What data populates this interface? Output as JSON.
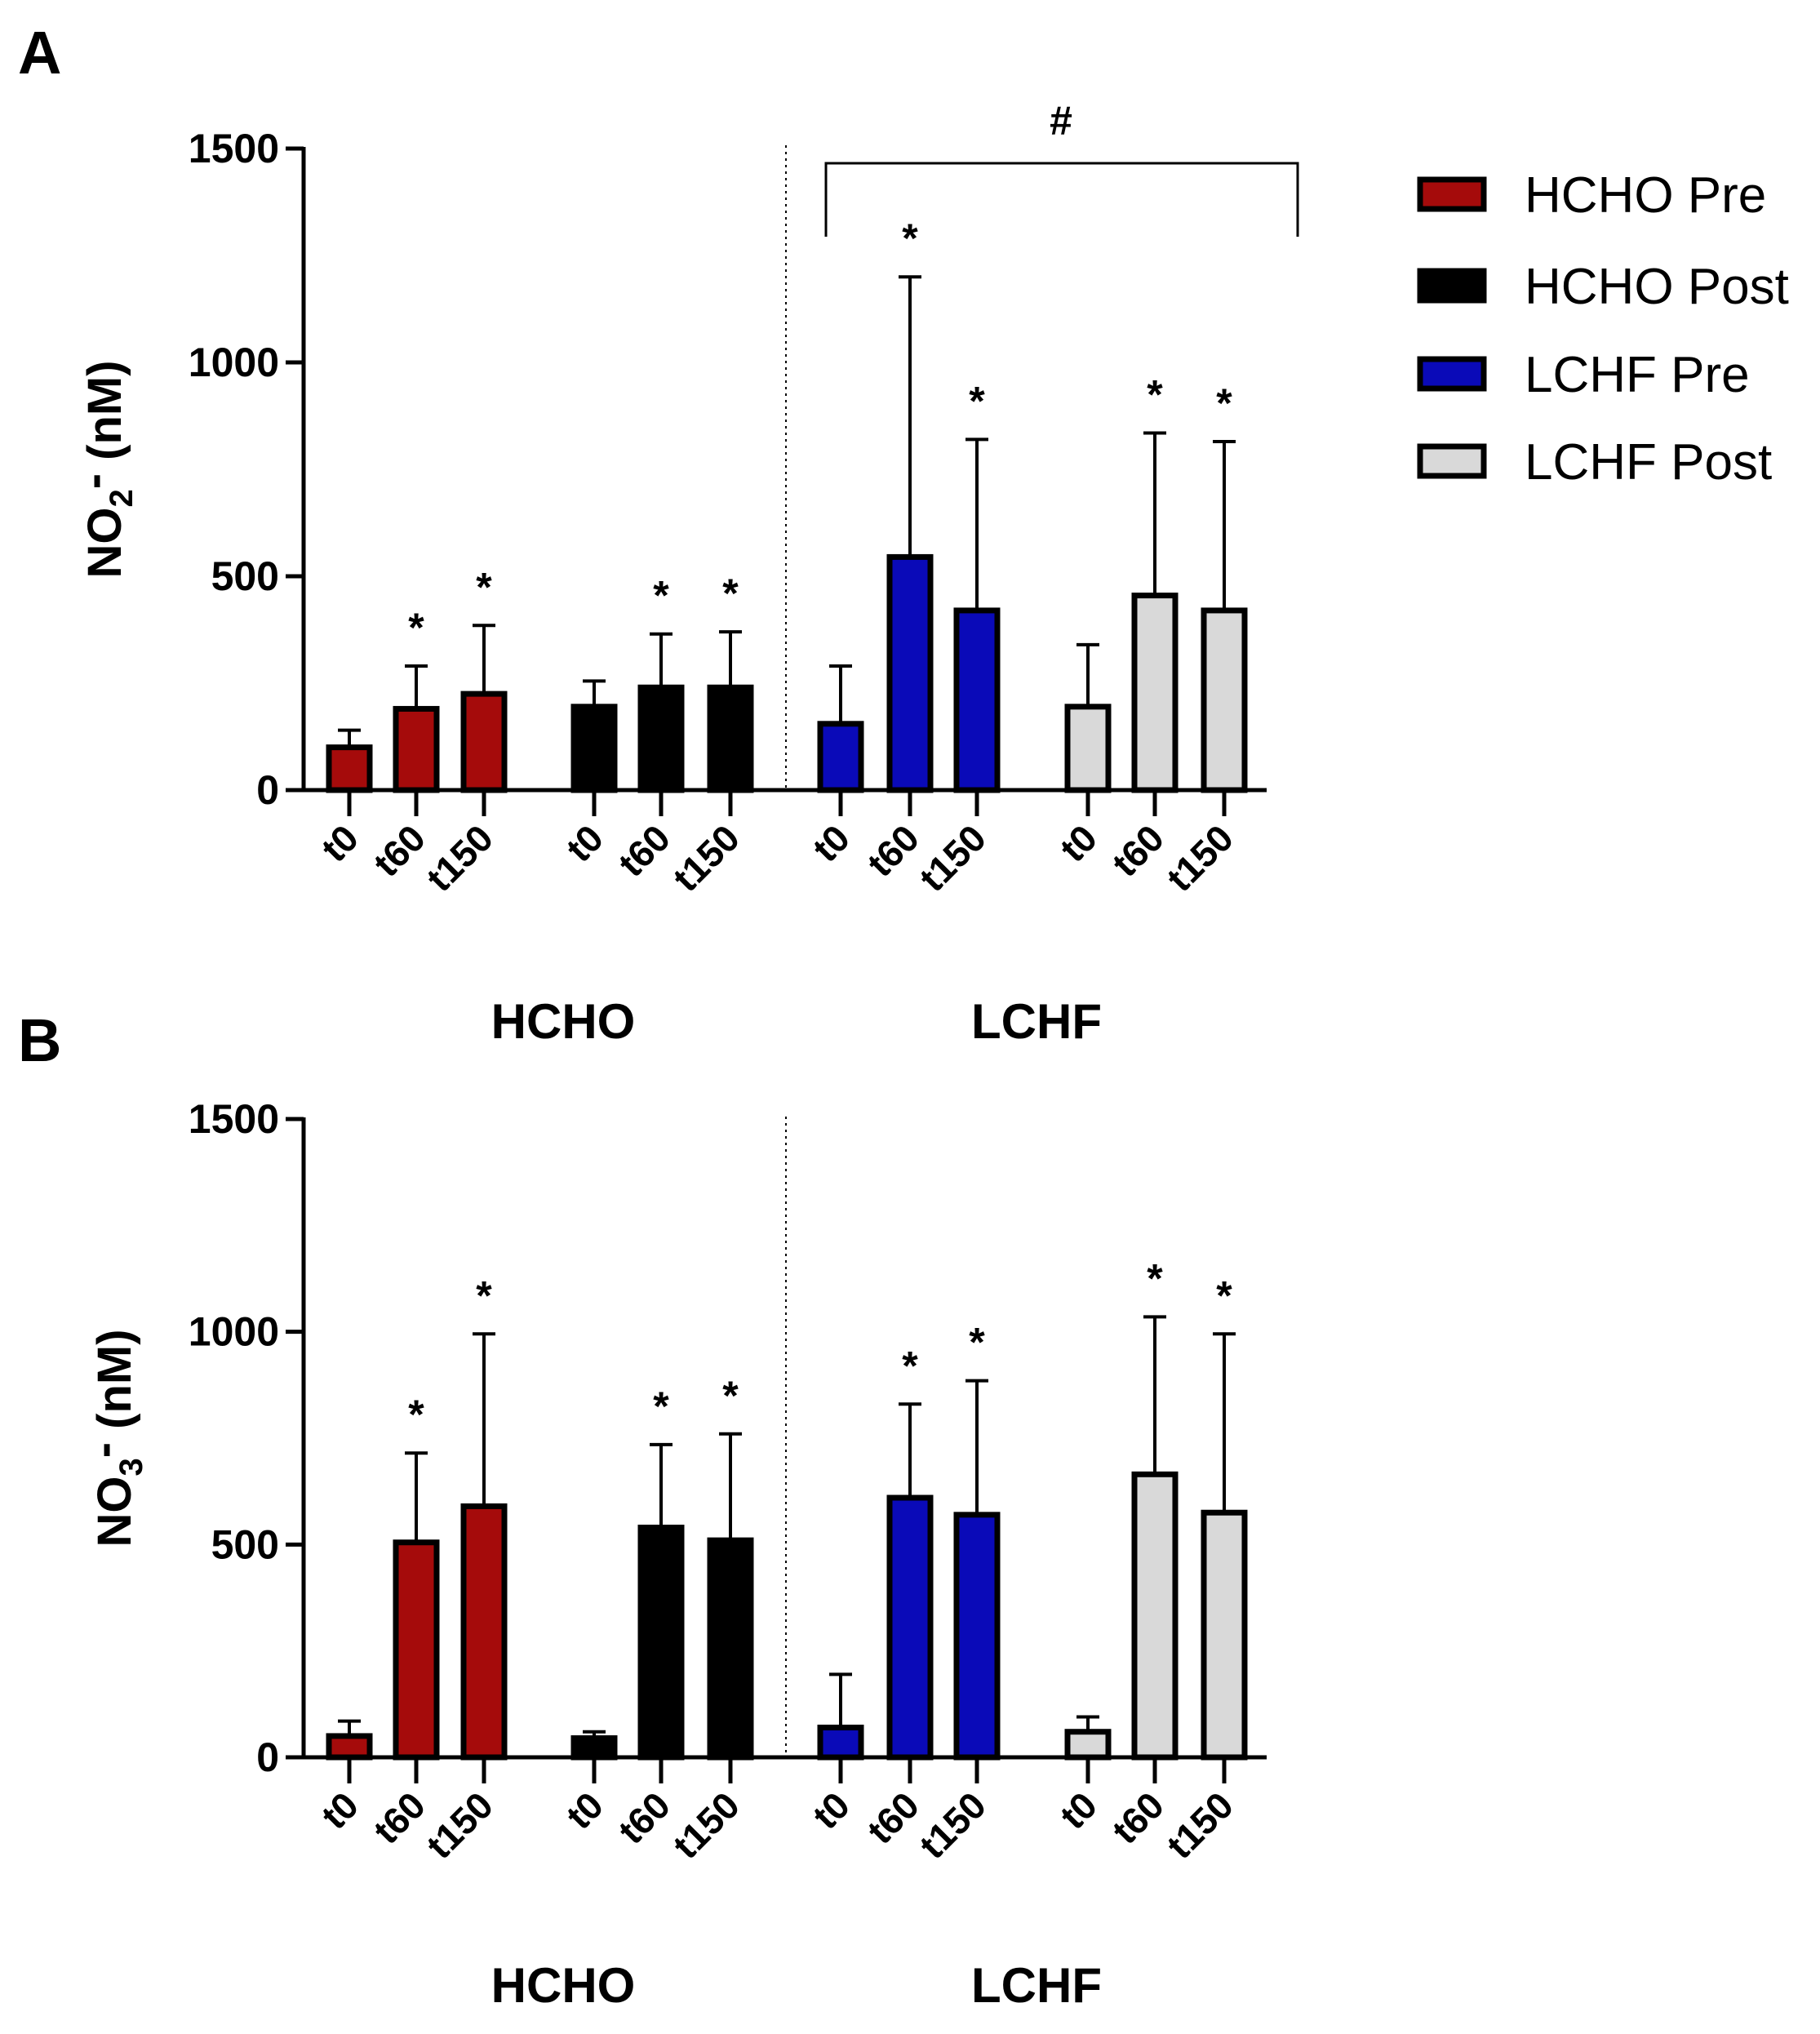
{
  "chart_data": [
    {
      "panel": "A",
      "type": "bar",
      "ylabel": {
        "main": "NO",
        "sub": "2",
        "sup": "-",
        "unit": " (nM)"
      },
      "ylim": [
        0,
        1500
      ],
      "yticks": [
        "0",
        "500",
        "1000",
        "1500"
      ],
      "group_labels": [
        "HCHO",
        "LCHF"
      ],
      "significance_bracket": "#",
      "series": [
        {
          "name": "HCHO Pre",
          "color": "#A50B0B",
          "categories": [
            "t0",
            "t60",
            "t150"
          ],
          "values": [
            100,
            190,
            225
          ],
          "errors": [
            40,
            100,
            160
          ],
          "stars": [
            "",
            "*",
            "*"
          ]
        },
        {
          "name": "HCHO Post",
          "color": "#000000",
          "categories": [
            "t0",
            "t60",
            "t150"
          ],
          "values": [
            195,
            240,
            240
          ],
          "errors": [
            60,
            125,
            130
          ],
          "stars": [
            "",
            "*",
            "*"
          ]
        },
        {
          "name": "LCHF Pre",
          "color": "#0A0AB8",
          "categories": [
            "t0",
            "t60",
            "t150"
          ],
          "values": [
            155,
            545,
            420
          ],
          "errors": [
            135,
            655,
            400
          ],
          "stars": [
            "",
            "*",
            "*"
          ]
        },
        {
          "name": "LCHF Post",
          "color": "#D9D9D9",
          "categories": [
            "t0",
            "t60",
            "t150"
          ],
          "values": [
            195,
            455,
            420
          ],
          "errors": [
            145,
            380,
            395
          ],
          "stars": [
            "",
            "*",
            "*"
          ]
        }
      ]
    },
    {
      "panel": "B",
      "type": "bar",
      "ylabel": {
        "main": "NO",
        "sub": "3",
        "sup": "-",
        "unit": " (nM)"
      },
      "ylim": [
        0,
        1500
      ],
      "yticks": [
        "0",
        "500",
        "1000",
        "1500"
      ],
      "group_labels": [
        "HCHO",
        "LCHF"
      ],
      "series": [
        {
          "name": "HCHO Pre",
          "color": "#A50B0B",
          "categories": [
            "t0",
            "t60",
            "t150"
          ],
          "values": [
            50,
            505,
            590
          ],
          "errors": [
            35,
            210,
            405
          ],
          "stars": [
            "",
            "*",
            "*"
          ]
        },
        {
          "name": "HCHO Post",
          "color": "#000000",
          "categories": [
            "t0",
            "t60",
            "t150"
          ],
          "values": [
            45,
            540,
            510
          ],
          "errors": [
            15,
            195,
            250
          ],
          "stars": [
            "",
            "*",
            "*"
          ]
        },
        {
          "name": "LCHF Pre",
          "color": "#0A0AB8",
          "categories": [
            "t0",
            "t60",
            "t150"
          ],
          "values": [
            70,
            610,
            570
          ],
          "errors": [
            125,
            220,
            315
          ],
          "stars": [
            "",
            "*",
            "*"
          ]
        },
        {
          "name": "LCHF Post",
          "color": "#D9D9D9",
          "categories": [
            "t0",
            "t60",
            "t150"
          ],
          "values": [
            60,
            665,
            575
          ],
          "errors": [
            35,
            370,
            420
          ],
          "stars": [
            "",
            "*",
            "*"
          ]
        }
      ]
    }
  ],
  "legend": [
    {
      "label": "HCHO Pre",
      "color": "#A50B0B"
    },
    {
      "label": "HCHO Post",
      "color": "#000000"
    },
    {
      "label": "LCHF Pre",
      "color": "#0A0AB8"
    },
    {
      "label": "LCHF Post",
      "color": "#D9D9D9"
    }
  ]
}
